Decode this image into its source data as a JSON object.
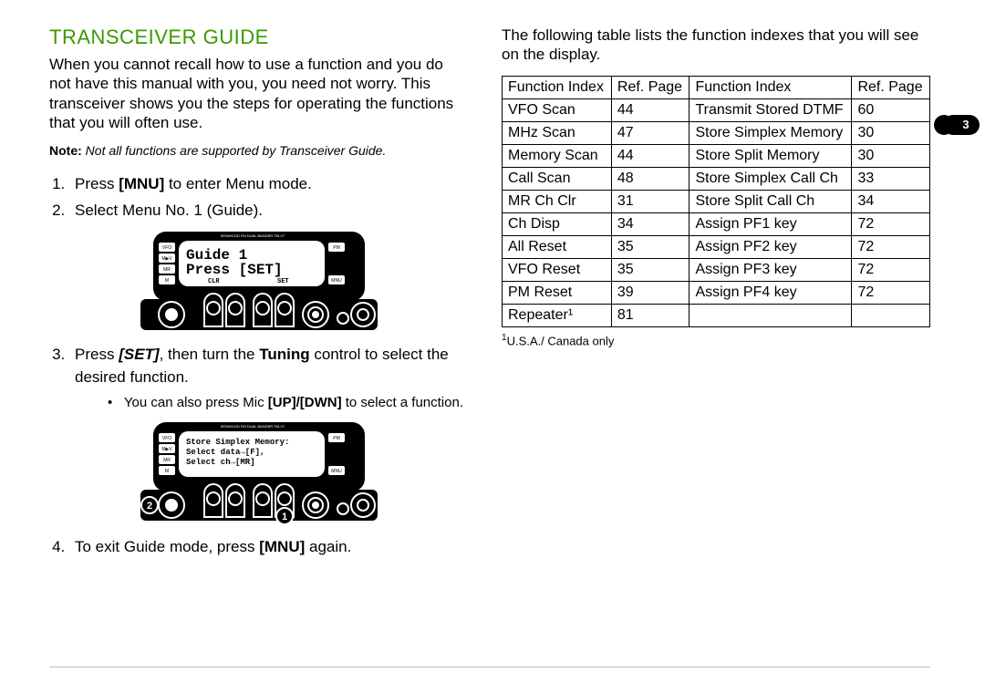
{
  "page_number": "3",
  "heading": "TRANSCEIVER GUIDE",
  "intro": "When you cannot recall how to use a function and you do not have this manual with you, you need not worry.  This transceiver shows you the steps for operating the functions that you will often use.",
  "note_label": "Note:",
  "note_text": "  Not all functions are supported by Transceiver Guide.",
  "step1_pre": "Press ",
  "step1_b": "[MNU]",
  "step1_post": " to enter Menu mode.",
  "step2": "Select Menu No. 1 (Guide).",
  "step3_pre": "Press ",
  "step3_b1": "[SET]",
  "step3_mid": ", then turn the ",
  "step3_b2": "Tuning",
  "step3_post": " control to select the desired function.",
  "step3_bullet_pre": "You can also press Mic ",
  "step3_bullet_b": "[UP]/[DWN]",
  "step3_bullet_post": " to select a function.",
  "step4_pre": "To exit Guide mode, press ",
  "step4_b": "[MNU]",
  "step4_post": " again.",
  "table_intro": "The following table lists the function indexes that you will see on the display.",
  "footnote": "U.S.A./ Canada only",
  "footnote_sup": "1",
  "table": {
    "headers": [
      "Function Index",
      "Ref. Page",
      "Function Index",
      "Ref. Page"
    ],
    "rows": [
      [
        "VFO Scan",
        "44",
        "Transmit Stored DTMF",
        "60"
      ],
      [
        "MHz Scan",
        "47",
        "Store Simplex Memory",
        "30"
      ],
      [
        "Memory Scan",
        "44",
        "Store Split Memory",
        "30"
      ],
      [
        "Call Scan",
        "48",
        "Store Simplex Call Ch",
        "33"
      ],
      [
        "MR Ch Clr",
        "31",
        "Store Split Call Ch",
        "34"
      ],
      [
        "Ch Disp",
        "34",
        "Assign PF1 key",
        "72"
      ],
      [
        "All Reset",
        "35",
        "Assign PF2 key",
        "72"
      ],
      [
        "VFO Reset",
        "35",
        "Assign PF3 key",
        "72"
      ],
      [
        "PM Reset",
        "39",
        "Assign PF4 key",
        "72"
      ],
      [
        "Repeater¹",
        "81",
        "",
        ""
      ]
    ]
  },
  "device_top_label": "KENWOOD FM DUAL BANDER  TM-V7",
  "device1_line1": "Guide          1",
  "device1_line2": " Press [SET]",
  "device1_small1": "CLR",
  "device1_small2": "SET",
  "device2_line1": "Store Simplex Memory:",
  "device2_line2": " Select data→[F],",
  "device2_line3": " Select ch→[MR]",
  "side_labels": {
    "vfo": "VFO",
    "mv": "M▶V",
    "mr": "MR",
    "m": "M",
    "pm": "PM",
    "mnu": "MNU"
  },
  "badge2": "2",
  "badge1": "1",
  "colors": {
    "heading": "#3a9a00",
    "rule": "#bdbdbd",
    "ink": "#000000",
    "paper": "#ffffff"
  }
}
